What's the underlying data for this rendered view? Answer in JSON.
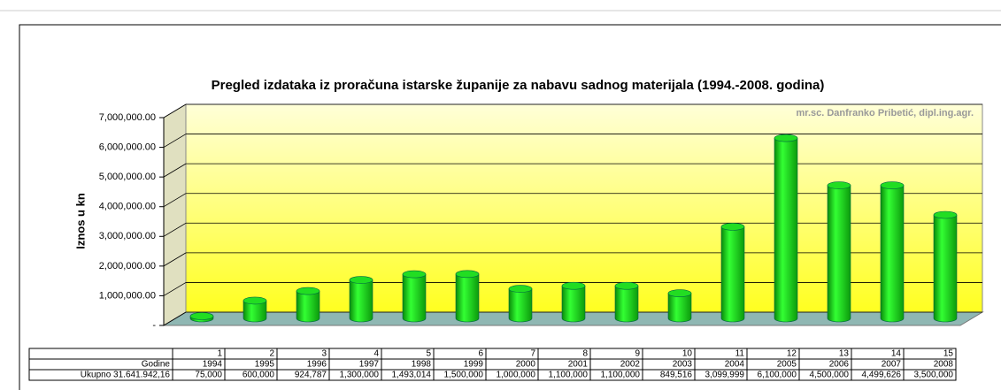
{
  "chart_data": {
    "type": "bar3d",
    "title": "Pregled izdataka iz proračuna istarske županije za nabavu sadnog materijala  (1994.-2008. godina)",
    "annotation": "mr.sc. Danfranko Pribetić, dipl.ing.agr.",
    "y_label": "Iznos u kn",
    "table_index": [
      1,
      2,
      3,
      4,
      5,
      6,
      7,
      8,
      9,
      10,
      11,
      12,
      13,
      14,
      15
    ],
    "categories_label": "Godine",
    "categories": [
      "1994",
      "1995",
      "1996",
      "1997",
      "1998",
      "1999",
      "2000",
      "2001",
      "2002",
      "2003",
      "2004",
      "2005",
      "2006",
      "2007",
      "2008"
    ],
    "series": [
      {
        "name": "Ukupno 31.641.942,16",
        "color": "#22dd22",
        "values": [
          75000,
          600000,
          924787,
          1300000,
          1493014,
          1500000,
          1000000,
          1100000,
          1100000,
          849516,
          3099999,
          6100000,
          4500000,
          4499626,
          3500000
        ],
        "value_labels": [
          "75,000",
          "600,000",
          "924,787",
          "1,300,000",
          "1,493,014",
          "1,500,000",
          "1,000,000",
          "1,100,000",
          "1,100,000",
          "849,516",
          "3,099,999",
          "6,100,000",
          "4,500,000",
          "4,499,626",
          "3,500,000"
        ]
      }
    ],
    "ylim": [
      0,
      7000000
    ],
    "yticks": [
      {
        "value": 0,
        "label": "-"
      },
      {
        "value": 1000000,
        "label": "1,000,000.00"
      },
      {
        "value": 2000000,
        "label": "2,000,000.00"
      },
      {
        "value": 3000000,
        "label": "3,000,000.00"
      },
      {
        "value": 4000000,
        "label": "4,000,000.00"
      },
      {
        "value": 5000000,
        "label": "5,000,000.00"
      },
      {
        "value": 6000000,
        "label": "6,000,000.00"
      },
      {
        "value": 7000000,
        "label": "7,000,000.00"
      }
    ],
    "grid": true
  }
}
